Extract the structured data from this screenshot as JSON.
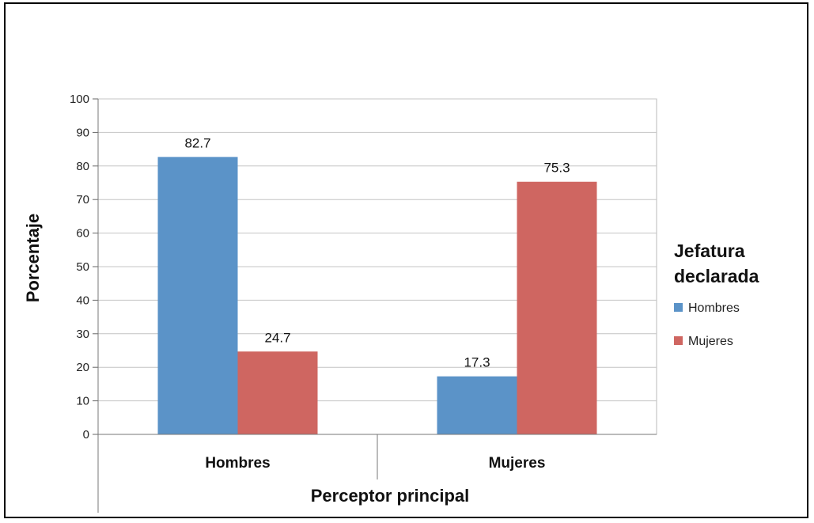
{
  "chart_data": {
    "type": "bar",
    "categories": [
      "Hombres",
      "Mujeres"
    ],
    "series": [
      {
        "name": "Hombres",
        "values": [
          82.7,
          17.3
        ],
        "color": "#5b93c8"
      },
      {
        "name": "Mujeres",
        "values": [
          24.7,
          75.3
        ],
        "color": "#cf6661"
      }
    ],
    "title": "",
    "xlabel": "Perceptor principal",
    "ylabel": "Porcentaje",
    "ylim": [
      0,
      100
    ],
    "yticks": [
      0,
      10,
      20,
      30,
      40,
      50,
      60,
      70,
      80,
      90,
      100
    ],
    "data_labels": [
      "82.7",
      "17.3",
      "24.7",
      "75.3"
    ],
    "legend": {
      "title_lines": [
        "Jefatura",
        "declarada"
      ],
      "position": "right"
    },
    "grid": true
  }
}
